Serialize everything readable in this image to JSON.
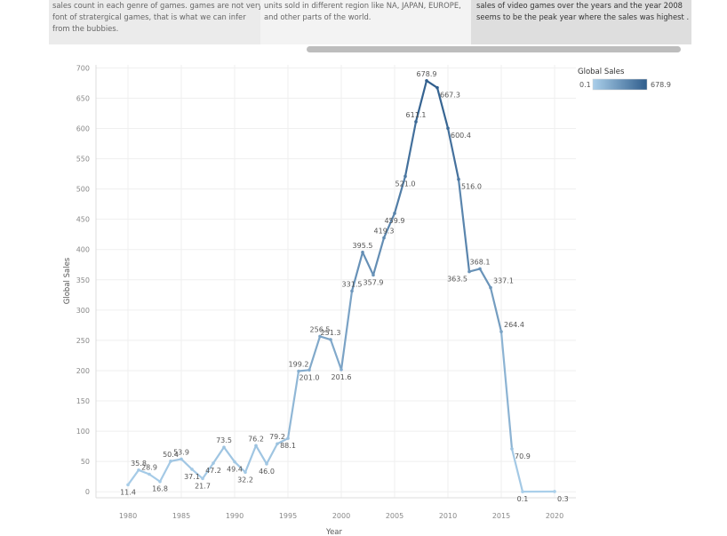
{
  "captions": [
    {
      "lines": [
        "sales count in each genre of games. games are not very",
        "font of stratergical games, that is what we can infer",
        "from the bubbies."
      ]
    },
    {
      "lines": [
        "units sold in different region like NA, JAPAN, EUROPE,",
        "and other parts of the world."
      ]
    },
    {
      "lines": [
        "sales of video games over the years and the year 2008",
        "seems to be the peak year where the sales was highest ."
      ]
    }
  ],
  "legend": {
    "title": "Global Sales",
    "min_label": "0.1",
    "max_label": "678.9"
  },
  "colors": {
    "low": "#aacfea",
    "high": "#2f5d8c",
    "grid": "#efefef"
  },
  "chart_data": {
    "type": "line",
    "xlabel": "Year",
    "ylabel": "Global Sales",
    "xlim": [
      1977,
      2022
    ],
    "ylim": [
      -10,
      705
    ],
    "xticks": [
      1980,
      1985,
      1990,
      1995,
      2000,
      2005,
      2010,
      2015,
      2020
    ],
    "yticks": [
      0,
      50,
      100,
      150,
      200,
      250,
      300,
      350,
      400,
      450,
      500,
      550,
      600,
      650,
      700
    ],
    "grid": true,
    "legend_position": "top-right",
    "x": [
      1980,
      1981,
      1982,
      1983,
      1984,
      1985,
      1986,
      1987,
      1988,
      1989,
      1990,
      1991,
      1992,
      1993,
      1994,
      1995,
      1996,
      1997,
      1998,
      1999,
      2000,
      2001,
      2002,
      2003,
      2004,
      2005,
      2006,
      2007,
      2008,
      2009,
      2010,
      2011,
      2012,
      2013,
      2014,
      2015,
      2016,
      2017,
      2020
    ],
    "y": [
      11.4,
      35.8,
      28.9,
      16.8,
      50.4,
      53.9,
      37.1,
      21.7,
      47.2,
      73.5,
      49.4,
      32.2,
      76.2,
      46.0,
      79.2,
      88.1,
      199.2,
      201.0,
      256.5,
      251.3,
      201.6,
      331.5,
      395.5,
      357.9,
      419.3,
      459.9,
      521.0,
      611.1,
      678.9,
      667.3,
      600.4,
      516.0,
      363.5,
      368.1,
      337.1,
      264.4,
      70.9,
      0.1,
      0.3
    ],
    "point_labels": [
      "11.4",
      "35.8",
      "28.9",
      "16.8",
      "50.4",
      "53.9",
      "37.1",
      "21.7",
      "47.2",
      "73.5",
      "49.4",
      "32.2",
      "76.2",
      "46.0",
      "79.2",
      "88.1",
      "199.2",
      "201.0",
      "256.5",
      "251.3",
      "201.6",
      "331.5",
      "395.5",
      "357.9",
      "419.3",
      "459.9",
      "521.0",
      "611.1",
      "678.9",
      "667.3",
      "600.4",
      "516.0",
      "363.5",
      "368.1",
      "337.1",
      "264.4",
      "70.9",
      "0.1",
      "0.3"
    ]
  }
}
